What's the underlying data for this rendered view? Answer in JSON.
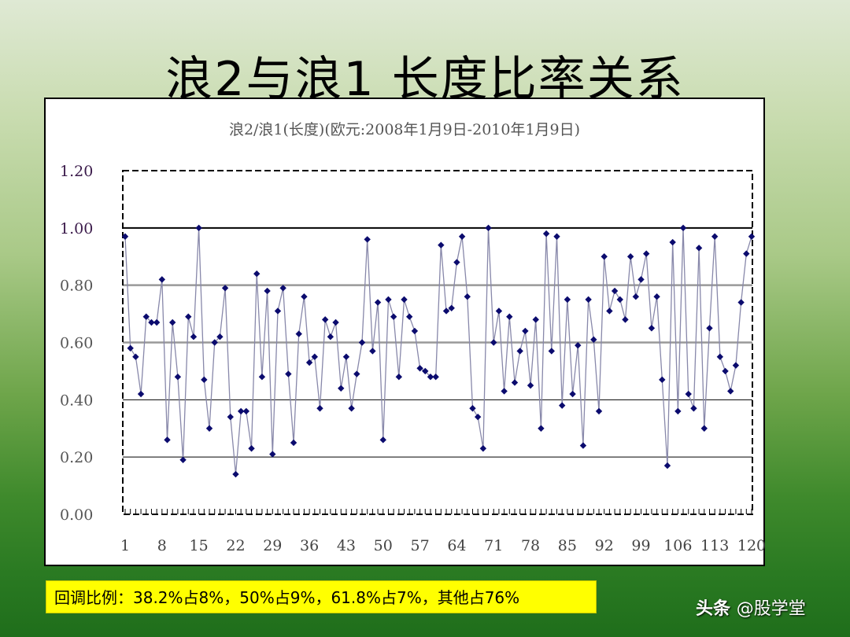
{
  "slide": {
    "title": "浪2与浪1 长度比率关系",
    "summary": "回调比例：38.2%占8%，50%占9%，61.8%占7%，其他占76%",
    "watermark_brand": "头条",
    "watermark_handle": "@股学堂"
  },
  "colors": {
    "series": "#0b0b6e",
    "line": "#8888aa",
    "summary_bg": "#ffff00",
    "grid_major": "#000000",
    "grid_minor": "#999999"
  },
  "chart_data": {
    "type": "line",
    "title": "浪2/浪1(长度)(欧元:2008年1月9日-2010年1月9日)",
    "xlabel": "",
    "ylabel": "",
    "ylim": [
      0,
      1.2
    ],
    "yticks": [
      "0.00",
      "0.20",
      "0.40",
      "0.60",
      "0.80",
      "1.00",
      "1.20"
    ],
    "xticks": [
      "1",
      "8",
      "15",
      "22",
      "29",
      "36",
      "43",
      "50",
      "57",
      "64",
      "71",
      "78",
      "85",
      "92",
      "99",
      "106",
      "113",
      "120"
    ],
    "grid": true,
    "legend": "none",
    "series": [
      {
        "name": "浪2/浪1",
        "marker": "diamond",
        "values": [
          0.97,
          0.58,
          0.55,
          0.42,
          0.69,
          0.67,
          0.67,
          0.82,
          0.26,
          0.67,
          0.48,
          0.19,
          0.69,
          0.62,
          1.0,
          0.47,
          0.3,
          0.6,
          0.62,
          0.79,
          0.34,
          0.14,
          0.36,
          0.36,
          0.23,
          0.84,
          0.48,
          0.78,
          0.21,
          0.71,
          0.79,
          0.49,
          0.25,
          0.63,
          0.76,
          0.53,
          0.55,
          0.37,
          0.68,
          0.62,
          0.67,
          0.44,
          0.55,
          0.37,
          0.49,
          0.6,
          0.96,
          0.57,
          0.74,
          0.26,
          0.75,
          0.69,
          0.48,
          0.75,
          0.69,
          0.64,
          0.51,
          0.5,
          0.48,
          0.48,
          0.94,
          0.71,
          0.72,
          0.88,
          0.97,
          0.76,
          0.37,
          0.34,
          0.23,
          1.0,
          0.6,
          0.71,
          0.43,
          0.69,
          0.46,
          0.57,
          0.64,
          0.45,
          0.68,
          0.3,
          0.98,
          0.57,
          0.97,
          0.38,
          0.75,
          0.42,
          0.59,
          0.24,
          0.75,
          0.61,
          0.36,
          0.9,
          0.71,
          0.78,
          0.75,
          0.68,
          0.9,
          0.76,
          0.82,
          0.91,
          0.65,
          0.76,
          0.47,
          0.17,
          0.95,
          0.36,
          1.0,
          0.42,
          0.37,
          0.93,
          0.3,
          0.65,
          0.97,
          0.55,
          0.5,
          0.43,
          0.52,
          0.74,
          0.91,
          0.97
        ]
      }
    ]
  }
}
